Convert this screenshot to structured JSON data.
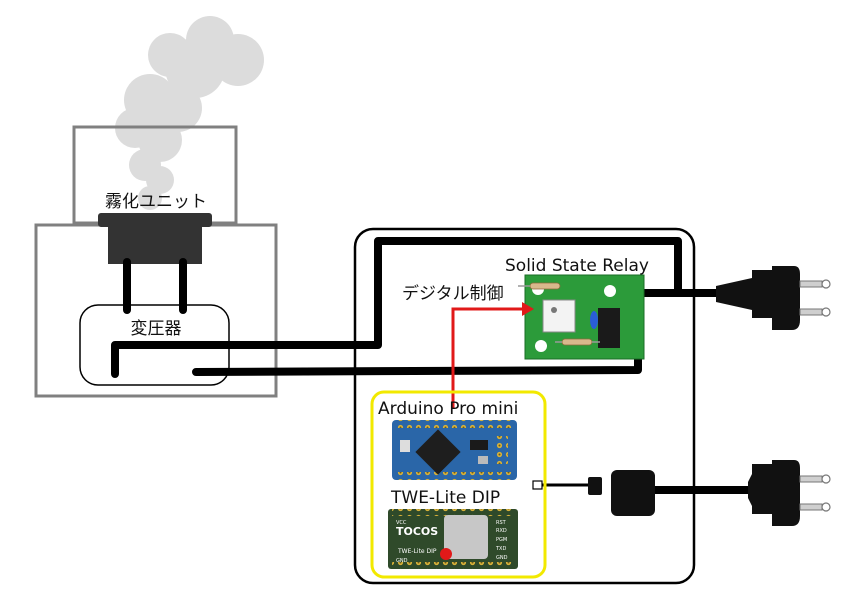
{
  "labels": {
    "mist_unit": "霧化ユニット",
    "transformer": "変圧器",
    "ssr": "Solid State Relay",
    "digital_control": "デジタル制御",
    "arduino": "Arduino Pro mini",
    "twelite": "TWE-Lite DIP",
    "tocos_brand": "TOCOS",
    "twelite_small": "TWE-Lite DIP",
    "twe_left_pins": [
      "VCC",
      "",
      "",
      "",
      "GND"
    ],
    "twe_right_pins": [
      "RST",
      "RXD",
      "PGM",
      "TXD",
      "GND"
    ]
  },
  "colors": {
    "cable": "#000000",
    "control_arrow": "#e11919",
    "ssr_board": "#2c9b3a",
    "arduino_board": "#2a66a8",
    "twelite_board": "#2f4a2a",
    "twelite_highlight": "#f2e900",
    "unit_outline": "#808080"
  },
  "icons": [
    "smoke-icon",
    "power-plug-icon",
    "power-plug-icon",
    "usb-adapter-icon"
  ]
}
